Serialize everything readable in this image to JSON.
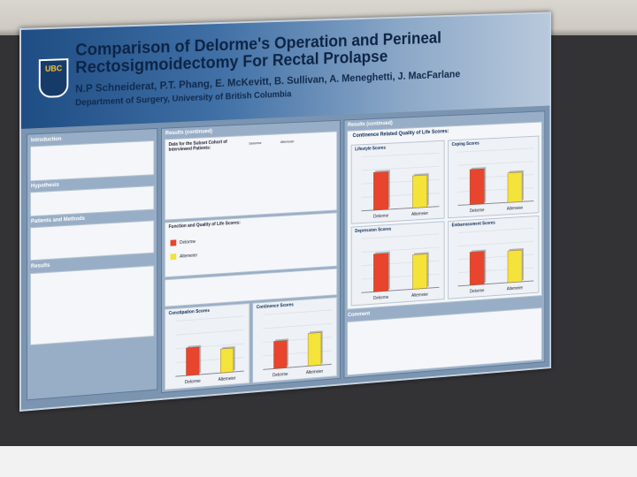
{
  "poster": {
    "logo": "UBC",
    "title": "Comparison of Delorme's Operation and Perineal Rectosigmoidectomy For Rectal Prolapse",
    "authors": "N.P Schneiderat, P.T. Phang, E. McKevitt, B. Sullivan, A. Meneghetti, J. MacFarlane",
    "department": "Department of Surgery, University of British Columbia"
  },
  "left_col": {
    "intro": "Introduction",
    "hypothesis": "Hypothesis",
    "patients": "Patients and Methods",
    "results": "Results"
  },
  "mid_col": {
    "results_cont": "Results (continued)",
    "table_title": "Data for the Subset Cohort of Interviewed Patients:",
    "table_headers": [
      "",
      "Delorme",
      "Altemeier"
    ],
    "function_title": "Function and Quality of Life Scores:",
    "legend": [
      {
        "label": "Delorme",
        "color": "#e8442e"
      },
      {
        "label": "Altemeier",
        "color": "#f3e33a"
      }
    ],
    "constipation_scores": "Constipation Scores",
    "continence_scores": "Continence Scores"
  },
  "right_col": {
    "results_cont": "Results (continued)",
    "section_title": "Continence Related Quality of Life Scores:",
    "comment": "Comment"
  },
  "charts": [
    {
      "id": "lifestyle",
      "title": "Lifestyle Scores",
      "categories": [
        "Delorme",
        "Altemeier"
      ],
      "values": [
        3.5,
        3.0
      ],
      "ylim": [
        0,
        5
      ]
    },
    {
      "id": "coping",
      "title": "Coping Scores",
      "categories": [
        "Delorme",
        "Altemeier"
      ],
      "values": [
        3.3,
        2.8
      ],
      "ylim": [
        0,
        5
      ]
    },
    {
      "id": "depression",
      "title": "Depression Scores",
      "categories": [
        "Delorme",
        "Altemeier"
      ],
      "values": [
        3.5,
        3.2
      ],
      "ylim": [
        0,
        5
      ]
    },
    {
      "id": "embarrassment",
      "title": "Embarrassment Scores",
      "categories": [
        "Delorme",
        "Altemeier"
      ],
      "values": [
        3.1,
        3.0
      ],
      "ylim": [
        0,
        5
      ]
    },
    {
      "id": "constipation",
      "title": "Constipation Scores",
      "categories": [
        "Delorme",
        "Altemeier"
      ],
      "values": [
        3.0,
        2.6
      ],
      "ylim": [
        0,
        6
      ]
    },
    {
      "id": "continence",
      "title": "Continence Scores",
      "categories": [
        "Delorme",
        "Altemeier"
      ],
      "values": [
        3.0,
        3.6
      ],
      "ylim": [
        0,
        6
      ]
    }
  ]
}
